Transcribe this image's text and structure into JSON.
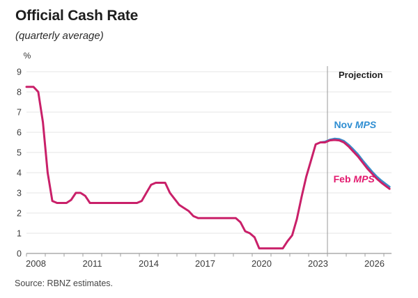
{
  "header": {
    "title": "Official Cash Rate",
    "subtitle": "(quarterly average)"
  },
  "footer": {
    "source": "Source: RBNZ estimates."
  },
  "chart_data": {
    "type": "line",
    "title": "Official Cash Rate",
    "subtitle": "(quarterly average)",
    "ylabel": "%",
    "ylim": [
      0,
      9
    ],
    "y_ticks": [
      0,
      1,
      2,
      3,
      4,
      5,
      6,
      7,
      8,
      9
    ],
    "xlim": [
      2008,
      2027.4
    ],
    "x_tick_years": [
      2008,
      2009,
      2010,
      2011,
      2012,
      2013,
      2014,
      2015,
      2016,
      2017,
      2018,
      2019,
      2020,
      2021,
      2022,
      2023,
      2024,
      2025,
      2026,
      2027
    ],
    "x_tick_labels": [
      "2008",
      "2011",
      "2014",
      "2017",
      "2020",
      "2023",
      "2026"
    ],
    "x_label_years": [
      2008,
      2011,
      2014,
      2017,
      2020,
      2023,
      2026
    ],
    "grid": "horizontal",
    "colors": {
      "grid": "#e4e4e4",
      "axis": "#9c9c9c",
      "projection_line": "#a9a9a9",
      "tick_text": "#3a3a3a",
      "projection_text": "#1f1f1f",
      "unit_text": "#333333"
    },
    "projection": {
      "label": "Projection",
      "starts_at_year": 2024.0
    },
    "series": [
      {
        "name": "Nov MPS",
        "label_regular": "Nov ",
        "label_italic": "MPS",
        "color": "#3a8cc9",
        "label_color": "#2f8ed2",
        "label_pos": [
          2024.35,
          6.2
        ],
        "points": [
          [
            2023.625,
            5.5
          ],
          [
            2023.875,
            5.53
          ],
          [
            2024.125,
            5.63
          ],
          [
            2024.375,
            5.68
          ],
          [
            2024.625,
            5.66
          ],
          [
            2024.875,
            5.57
          ],
          [
            2025.125,
            5.38
          ],
          [
            2025.375,
            5.15
          ],
          [
            2025.625,
            4.9
          ],
          [
            2025.875,
            4.6
          ],
          [
            2026.125,
            4.32
          ],
          [
            2026.375,
            4.05
          ],
          [
            2026.625,
            3.8
          ],
          [
            2026.875,
            3.6
          ],
          [
            2027.125,
            3.42
          ],
          [
            2027.3,
            3.3
          ]
        ]
      },
      {
        "name": "Feb MPS",
        "label_regular": "Feb ",
        "label_italic": "MPS",
        "color": "#c92069",
        "label_color": "#e2196e",
        "label_pos": [
          2024.32,
          3.52
        ],
        "points": [
          [
            2008.0,
            8.25
          ],
          [
            2008.375,
            8.25
          ],
          [
            2008.625,
            8.0
          ],
          [
            2008.875,
            6.5
          ],
          [
            2009.125,
            4.0
          ],
          [
            2009.375,
            2.6
          ],
          [
            2009.625,
            2.5
          ],
          [
            2010.125,
            2.5
          ],
          [
            2010.375,
            2.65
          ],
          [
            2010.625,
            3.0
          ],
          [
            2010.875,
            3.0
          ],
          [
            2011.125,
            2.85
          ],
          [
            2011.375,
            2.5
          ],
          [
            2013.875,
            2.5
          ],
          [
            2014.125,
            2.6
          ],
          [
            2014.375,
            3.0
          ],
          [
            2014.625,
            3.4
          ],
          [
            2014.875,
            3.5
          ],
          [
            2015.375,
            3.5
          ],
          [
            2015.625,
            3.0
          ],
          [
            2015.875,
            2.7
          ],
          [
            2016.125,
            2.4
          ],
          [
            2016.375,
            2.25
          ],
          [
            2016.625,
            2.1
          ],
          [
            2016.875,
            1.85
          ],
          [
            2017.125,
            1.75
          ],
          [
            2019.125,
            1.75
          ],
          [
            2019.375,
            1.55
          ],
          [
            2019.625,
            1.1
          ],
          [
            2019.875,
            1.0
          ],
          [
            2020.125,
            0.8
          ],
          [
            2020.375,
            0.25
          ],
          [
            2021.625,
            0.25
          ],
          [
            2021.875,
            0.6
          ],
          [
            2022.125,
            0.9
          ],
          [
            2022.375,
            1.7
          ],
          [
            2022.625,
            2.8
          ],
          [
            2022.875,
            3.8
          ],
          [
            2023.125,
            4.6
          ],
          [
            2023.375,
            5.4
          ],
          [
            2023.625,
            5.5
          ],
          [
            2023.875,
            5.5
          ],
          [
            2024.125,
            5.6
          ],
          [
            2024.375,
            5.62
          ],
          [
            2024.625,
            5.6
          ],
          [
            2024.875,
            5.5
          ],
          [
            2025.125,
            5.3
          ],
          [
            2025.375,
            5.05
          ],
          [
            2025.625,
            4.8
          ],
          [
            2025.875,
            4.5
          ],
          [
            2026.125,
            4.2
          ],
          [
            2026.375,
            3.95
          ],
          [
            2026.625,
            3.7
          ],
          [
            2026.875,
            3.5
          ],
          [
            2027.125,
            3.32
          ],
          [
            2027.3,
            3.2
          ]
        ]
      }
    ],
    "source": "Source: RBNZ estimates."
  }
}
